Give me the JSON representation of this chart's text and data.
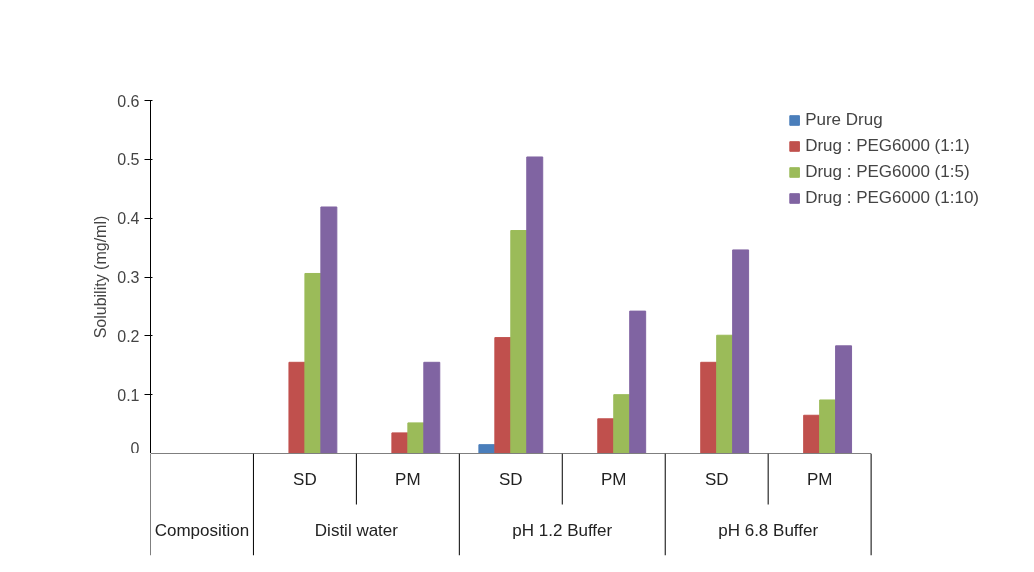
{
  "chart_data": {
    "type": "bar",
    "categories": [
      null,
      "SD",
      "PM",
      "SD",
      "PM",
      "SD",
      "PM"
    ],
    "ylabel": "Solubility (mg/ml)",
    "annotations": [
      "Composition",
      "Distil water",
      "pH 1.2 Buffer",
      "pH 6.8 Buffer"
    ],
    "series": [
      {
        "name": "Pure Drug",
        "color": "#4a7ebb",
        "values": [
          null,
          0,
          0,
          0.015,
          0,
          0,
          0
        ]
      },
      {
        "name": "Drug : PEG6000 (1:1)",
        "color": "#c0504d",
        "values": [
          null,
          0.155,
          0.035,
          0.197,
          0.059,
          0.155,
          0.065
        ]
      },
      {
        "name": "Drug : PEG6000 (1:5)",
        "color": "#9bbb59",
        "values": [
          null,
          0.306,
          0.052,
          0.379,
          0.1,
          0.201,
          0.091
        ]
      },
      {
        "name": "Drug : PEG6000 (1:10)",
        "color": "#8064a2",
        "values": [
          null,
          0.419,
          0.155,
          0.504,
          0.242,
          0.346,
          0.183
        ]
      }
    ],
    "ylim": [
      0,
      0.6
    ],
    "yticks": [
      0,
      0.1,
      0.2,
      0.3,
      0.4,
      0.5,
      0.6
    ],
    "grid": false,
    "legend": "top right"
  }
}
